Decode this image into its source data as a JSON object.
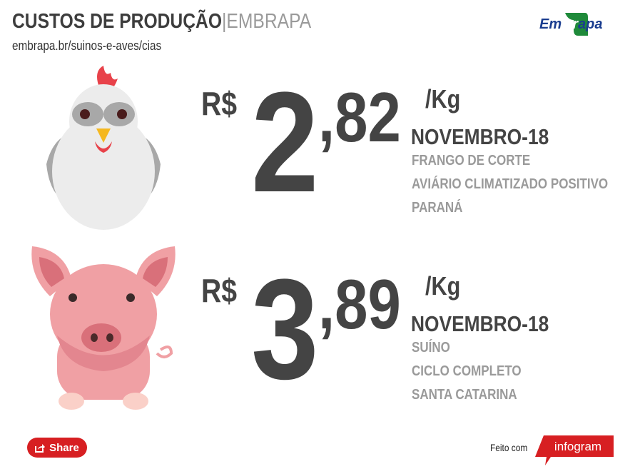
{
  "header": {
    "title": "CUSTOS DE PRODUÇÃO",
    "separator": "|",
    "org": "EMBRAPA",
    "url": "embrapa.br/suinos-e-aves/cias",
    "logo_text": "Embrapa"
  },
  "items": [
    {
      "animal": "chicken-icon",
      "currency": "R$",
      "integer": "2",
      "cents": ",82",
      "unit": "/Kg",
      "period": "NOVEMBRO-18",
      "details": [
        "FRANGO DE CORTE",
        "AVIÁRIO CLIMATIZADO POSITIVO",
        "PARANÁ"
      ]
    },
    {
      "animal": "pig-icon",
      "currency": "R$",
      "integer": "3",
      "cents": ",89",
      "unit": "/Kg",
      "period": "NOVEMBRO-18",
      "details": [
        "SUÍNO",
        "CICLO COMPLETO",
        "SANTA CATARINA"
      ]
    }
  ],
  "footer": {
    "share_label": "Share",
    "made_with": "Feito com",
    "brand": "infogram"
  },
  "colors": {
    "accent": "#d71f22",
    "text": "#444444",
    "muted": "#9a9a9a",
    "logo_blue": "#1a3d8f",
    "logo_green": "#1f8a3a"
  }
}
